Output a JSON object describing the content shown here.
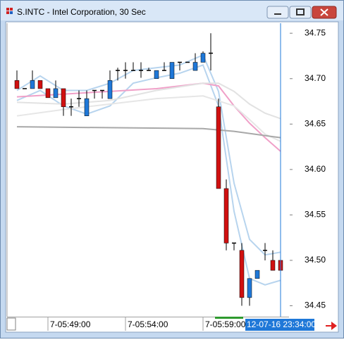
{
  "window_title": "S.INTC - Intel Corporation, 30 Sec",
  "chart_data": {
    "type": "candlestick",
    "categories": [
      null,
      null,
      null,
      null,
      "7-05:49:00",
      null,
      null,
      null,
      null,
      null,
      null,
      null,
      null,
      null,
      "7-05:54:00",
      null,
      null,
      null,
      null,
      null,
      null,
      null,
      null,
      null,
      "7-05:59:00",
      null,
      null,
      null,
      null,
      null,
      null,
      null,
      null,
      null,
      null
    ],
    "open": [
      34.698,
      34.689,
      34.689,
      34.698,
      34.689,
      34.679,
      34.689,
      34.669,
      34.678,
      34.659,
      34.687,
      34.687,
      34.678,
      34.709,
      34.709,
      34.709,
      34.709,
      34.709,
      34.7,
      34.709,
      34.7,
      34.718,
      34.718,
      34.709,
      34.718,
      34.728,
      34.669,
      34.579,
      34.519,
      34.511,
      34.459,
      34.48,
      34.511,
      34.5,
      34.5
    ],
    "high": [
      34.709,
      34.689,
      34.709,
      34.698,
      34.689,
      34.698,
      34.689,
      34.678,
      34.687,
      34.687,
      34.687,
      34.687,
      34.709,
      34.712,
      34.718,
      34.718,
      34.718,
      34.712,
      34.709,
      34.718,
      34.718,
      34.718,
      34.718,
      34.728,
      34.73,
      34.75,
      34.678,
      34.589,
      34.519,
      34.519,
      34.48,
      34.489,
      34.519,
      34.511,
      34.5
    ],
    "low": [
      34.689,
      34.689,
      34.689,
      34.689,
      34.679,
      34.679,
      34.659,
      34.659,
      34.669,
      34.659,
      34.678,
      34.678,
      34.678,
      34.698,
      34.7,
      34.709,
      34.701,
      34.709,
      34.7,
      34.709,
      34.7,
      34.709,
      34.718,
      34.709,
      34.718,
      34.709,
      34.579,
      34.511,
      34.511,
      34.45,
      34.45,
      34.48,
      34.5,
      34.489,
      34.489
    ],
    "close": [
      34.689,
      34.689,
      34.698,
      34.689,
      34.679,
      34.689,
      34.669,
      34.669,
      34.678,
      34.678,
      34.687,
      34.687,
      34.698,
      34.709,
      34.709,
      34.709,
      34.709,
      34.709,
      34.709,
      34.709,
      34.718,
      34.718,
      34.718,
      34.718,
      34.728,
      34.728,
      34.579,
      34.519,
      34.519,
      34.459,
      34.48,
      34.489,
      34.511,
      34.489,
      34.489
    ],
    "up_color": "#1f78d8",
    "down_color": "#d01010",
    "doji_color": "#000000",
    "series": [
      {
        "color": "#b7d4ee",
        "x": [
          0,
          3,
          6,
          9,
          12,
          15,
          18,
          21,
          24,
          26,
          28,
          30,
          32,
          34
        ],
        "values": [
          34.687,
          34.703,
          34.687,
          34.687,
          34.695,
          34.709,
          34.712,
          34.715,
          34.726,
          34.686,
          34.585,
          34.523,
          34.506,
          34.509
        ]
      },
      {
        "color": "#b7d4ee",
        "x": [
          0,
          3,
          6,
          9,
          12,
          15,
          18,
          21,
          24,
          26,
          28,
          30,
          32,
          34
        ],
        "values": [
          34.676,
          34.687,
          34.67,
          34.661,
          34.67,
          34.695,
          34.701,
          34.706,
          34.715,
          34.67,
          34.554,
          34.48,
          34.473,
          34.478
        ]
      },
      {
        "color": "#f0a0c8",
        "x": [
          0,
          6,
          12,
          18,
          24,
          26,
          28,
          30,
          32,
          34
        ],
        "values": [
          34.68,
          34.683,
          34.686,
          34.689,
          34.695,
          34.692,
          34.67,
          34.651,
          34.635,
          34.62
        ]
      },
      {
        "color": "#e2e2e2",
        "x": [
          0,
          6,
          12,
          18,
          24,
          26,
          28,
          30,
          32,
          34
        ],
        "values": [
          34.674,
          34.672,
          34.676,
          34.687,
          34.695,
          34.695,
          34.686,
          34.672,
          34.662,
          34.656
        ]
      },
      {
        "color": "#e6e6e6",
        "x": [
          0,
          6,
          12,
          18,
          24,
          28,
          30,
          32,
          34
        ],
        "values": [
          34.659,
          34.666,
          34.672,
          34.678,
          34.681,
          34.67,
          34.655,
          34.639,
          34.631
        ]
      },
      {
        "color": "#a8a8a8",
        "x": [
          0,
          24,
          28,
          34
        ],
        "values": [
          34.647,
          34.645,
          34.642,
          34.635
        ]
      }
    ],
    "ylim": [
      34.438,
      34.761
    ],
    "yticks": [
      34.45,
      {
        "value": 34.5,
        "label": "34.50"
      },
      34.55,
      {
        "value": 34.6,
        "label": "34.60"
      },
      34.65,
      {
        "value": 34.7,
        "label": "34.70"
      },
      34.75
    ],
    "cursor_label": "12-07-16 23:34:00",
    "cursor_color": "#1f78d8"
  }
}
